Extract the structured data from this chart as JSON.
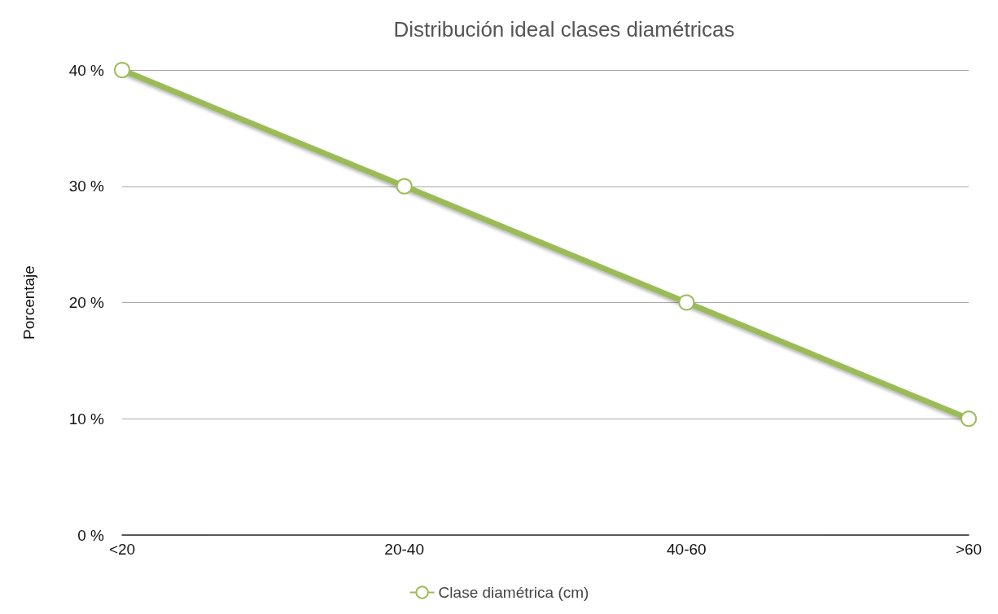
{
  "chart_data": {
    "type": "line",
    "title": "Distribución ideal clases diamétricas",
    "ylabel": "Porcentaje",
    "categories": [
      "<20",
      "20-40",
      "40-60",
      ">60"
    ],
    "series": [
      {
        "name": "Clase diamétrica (cm)",
        "color": "#9bbb59",
        "values": [
          40,
          30,
          20,
          10
        ]
      }
    ],
    "ylim": [
      0,
      40
    ],
    "yticks": [
      {
        "value": 0,
        "label": "0 %"
      },
      {
        "value": 10,
        "label": "10 %"
      },
      {
        "value": 20,
        "label": "20 %"
      },
      {
        "value": 30,
        "label": "30 %"
      },
      {
        "value": 40,
        "label": "40 %"
      }
    ],
    "grid": "y",
    "legend": "bottom",
    "marker": "circle",
    "line_style": "solid"
  }
}
